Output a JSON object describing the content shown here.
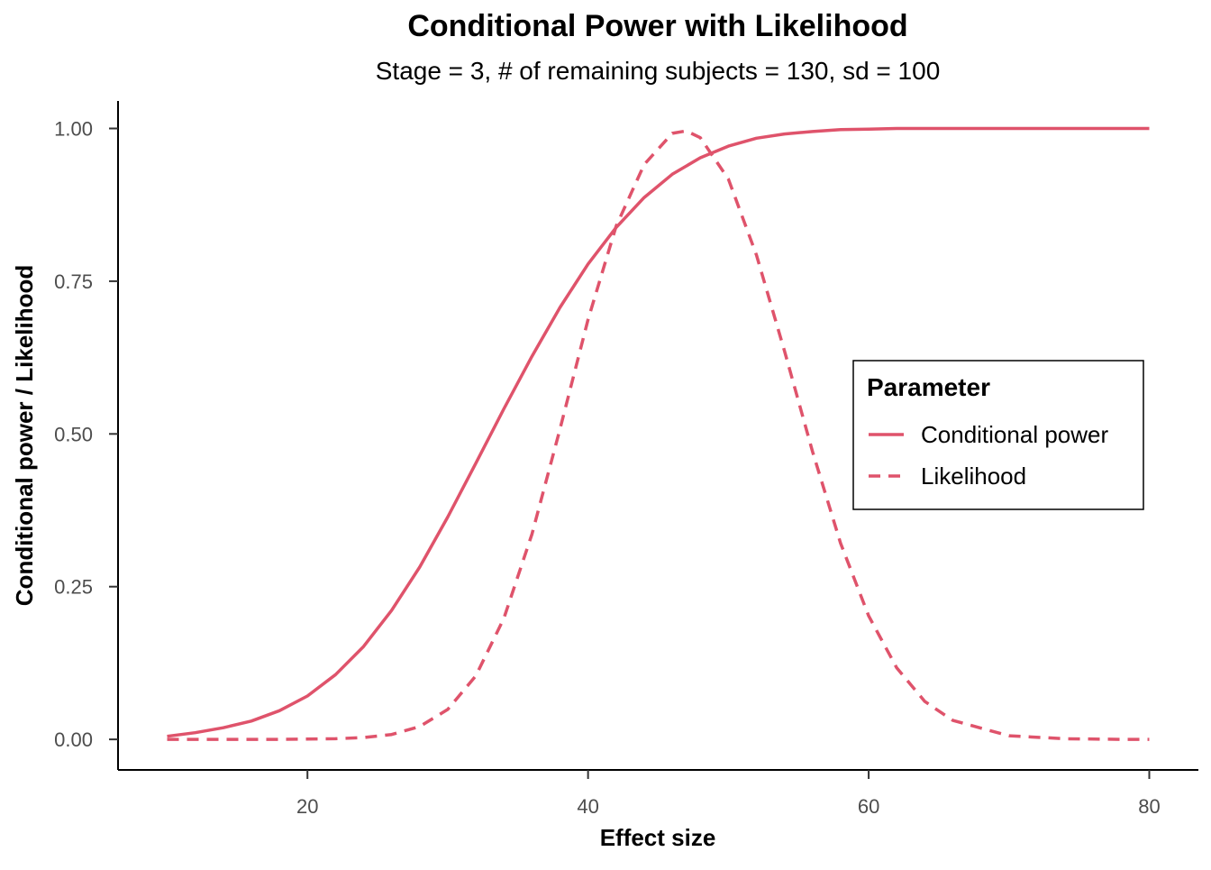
{
  "chart_data": {
    "type": "line",
    "title": "Conditional Power with Likelihood",
    "subtitle": "Stage = 3, # of remaining subjects = 130, sd = 100",
    "xlabel": "Effect size",
    "ylabel": "Conditional power / Likelihood",
    "xlim": [
      6.5,
      83.5
    ],
    "ylim": [
      -0.05,
      1.045
    ],
    "x_ticks": [
      20,
      40,
      60,
      80
    ],
    "x_tick_labels": [
      "20",
      "40",
      "60",
      "80"
    ],
    "y_ticks": [
      0,
      0.25,
      0.5,
      0.75,
      1.0
    ],
    "y_tick_labels": [
      "0.00",
      "0.25",
      "0.50",
      "0.75",
      "1.00"
    ],
    "grid": false,
    "legend": {
      "title": "Parameter",
      "position": "right",
      "entries": [
        "Conditional power",
        "Likelihood"
      ]
    },
    "series": [
      {
        "name": "Conditional power",
        "color": "#DF536B",
        "line_style": "solid",
        "x": [
          10,
          12,
          14,
          16,
          18,
          20,
          22,
          24,
          26,
          28,
          30,
          32,
          34,
          36,
          38,
          40,
          42,
          44,
          46,
          48,
          50,
          52,
          54,
          56,
          58,
          60,
          62,
          64,
          66,
          68,
          70,
          72,
          74,
          76,
          78,
          80
        ],
        "y": [
          0.005,
          0.011,
          0.019,
          0.03,
          0.047,
          0.071,
          0.106,
          0.152,
          0.211,
          0.282,
          0.364,
          0.452,
          0.541,
          0.627,
          0.707,
          0.778,
          0.838,
          0.887,
          0.925,
          0.952,
          0.971,
          0.984,
          0.991,
          0.995,
          0.998,
          0.999,
          1.0,
          1.0,
          1.0,
          1.0,
          1.0,
          1.0,
          1.0,
          1.0,
          1.0,
          1.0
        ]
      },
      {
        "name": "Likelihood",
        "color": "#DF536B",
        "line_style": "dashed",
        "x": [
          10,
          14,
          18,
          22,
          24,
          26,
          28,
          30,
          32,
          34,
          36,
          38,
          40,
          42,
          44,
          46,
          47,
          48,
          50,
          52,
          54,
          56,
          58,
          60,
          62,
          64,
          66,
          70,
          74,
          78,
          80
        ],
        "y": [
          0.0,
          0.0,
          0.0,
          0.001,
          0.003,
          0.008,
          0.021,
          0.049,
          0.104,
          0.198,
          0.336,
          0.508,
          0.687,
          0.84,
          0.941,
          0.992,
          0.996,
          0.985,
          0.917,
          0.793,
          0.636,
          0.471,
          0.321,
          0.202,
          0.117,
          0.062,
          0.031,
          0.006,
          0.001,
          0.0,
          0.0
        ]
      }
    ]
  }
}
